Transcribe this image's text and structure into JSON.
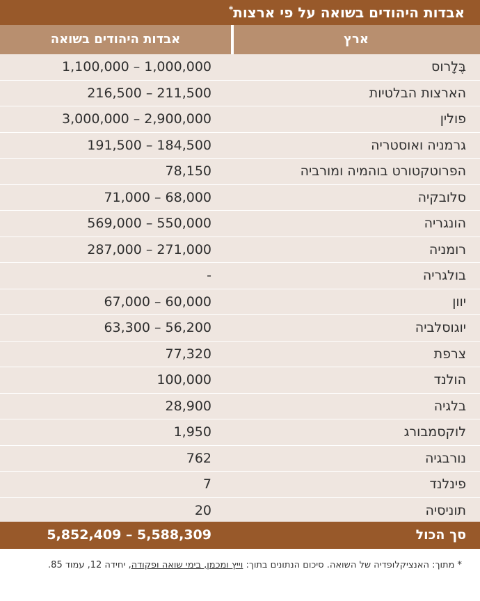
{
  "title": "אבדות היהודים בשואה על פי ארצות",
  "title_mark": "*",
  "headers": {
    "country": "ארץ",
    "losses": "אבדות היהודים בשואה"
  },
  "rows": [
    {
      "country": "בֶּלָרוס",
      "losses": "1,100,000 – 1,000,000"
    },
    {
      "country": "הארצות הבלטיות",
      "losses": "216,500 – 211,500"
    },
    {
      "country": "פולין",
      "losses": "3,000,000 – 2,900,000"
    },
    {
      "country": "גרמניה ואוסטריה",
      "losses": "191,500 – 184,500"
    },
    {
      "country": "הפרוטקטורט בוהמיה ומורביה",
      "losses": "78,150"
    },
    {
      "country": "סלובקיה",
      "losses": "71,000 – 68,000"
    },
    {
      "country": "הונגריה",
      "losses": "569,000 – 550,000"
    },
    {
      "country": "רומניה",
      "losses": "287,000 – 271,000"
    },
    {
      "country": "בולגריה",
      "losses": "-"
    },
    {
      "country": "יוון",
      "losses": "67,000 – 60,000"
    },
    {
      "country": "יוגוסלביה",
      "losses": "63,300 – 56,200"
    },
    {
      "country": "צרפת",
      "losses": "77,320"
    },
    {
      "country": "הולנד",
      "losses": "100,000"
    },
    {
      "country": "בלגיה",
      "losses": "28,900"
    },
    {
      "country": "לוקסמבורג",
      "losses": "1,950"
    },
    {
      "country": "נורבגיה",
      "losses": "762"
    },
    {
      "country": "פינלנד",
      "losses": "7"
    },
    {
      "country": "תוניסיה",
      "losses": "20"
    }
  ],
  "total": {
    "country": "סך הכול",
    "losses": "5,852,409 – 5,588,309"
  },
  "footnote": {
    "mark": "*",
    "part1": "מתוך: האנציקלופדיה של השואה. סיכום הנתונים בתוך: ",
    "part2": "וייץ ומכמן, בימי שואה ופקודה",
    "part3": ", יחידה 12, עמוד 85."
  },
  "colors": {
    "title_bg": "#98592a",
    "header_bg": "#b88f6f",
    "row_bg": "#efe6e0",
    "total_bg": "#98592a"
  }
}
